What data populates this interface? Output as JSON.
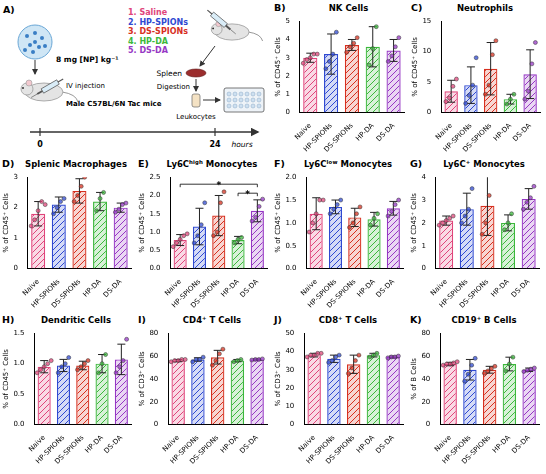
{
  "chart_data": [
    {
      "type": "bar",
      "panel": "B)",
      "title": "NK Cells",
      "y_label": "% of CD45⁺ Cells",
      "categories": [
        "Naive",
        "HP-SPIONs",
        "DS-SPIONs",
        "HP-DA",
        "DS-DA"
      ],
      "colors": [
        "#e0457b",
        "#2f49d1",
        "#d7301f",
        "#3cb83c",
        "#9637c4"
      ],
      "values": [
        3.0,
        3.2,
        3.7,
        3.6,
        3.4
      ],
      "errors": [
        0.25,
        1.1,
        0.3,
        1.1,
        0.6
      ],
      "points": [
        [
          2.7,
          2.9,
          3.0,
          3.2,
          3.2
        ],
        [
          2.4,
          2.8,
          3.2,
          4.4
        ],
        [
          3.3,
          3.6,
          3.8,
          4.1
        ],
        [
          2.6,
          3.5,
          4.7
        ],
        [
          2.8,
          3.1,
          3.6,
          4.1
        ]
      ],
      "ylim": [
        0,
        5
      ],
      "yticks": [
        0,
        1,
        2,
        3,
        4,
        5
      ],
      "grid": false
    },
    {
      "type": "bar",
      "panel": "C)",
      "title": "Neutrophils",
      "y_label": "% of CD45⁺ Cells",
      "categories": [
        "Naive",
        "HP-SPIONs",
        "DS-SPIONs",
        "HP-DA",
        "DS-DA"
      ],
      "colors": [
        "#e0457b",
        "#2f49d1",
        "#d7301f",
        "#3cb83c",
        "#9637c4"
      ],
      "values": [
        3.5,
        4.5,
        7.2,
        2.2,
        6.3
      ],
      "errors": [
        1.8,
        3.0,
        4.3,
        0.8,
        4.0
      ],
      "points": [
        [
          1.8,
          2.4,
          4.3,
          5.5
        ],
        [
          1.5,
          2.8,
          4.5,
          9.0
        ],
        [
          3.0,
          4.5,
          9.5,
          11.8
        ],
        [
          1.4,
          2.2,
          3.0
        ],
        [
          2.2,
          3.5,
          8.0,
          11.5
        ]
      ],
      "ylim": [
        0,
        15
      ],
      "yticks": [
        0,
        5,
        10,
        15
      ],
      "grid": false
    },
    {
      "type": "bar",
      "panel": "D)",
      "title": "Splenic Macrophages",
      "y_label": "% of CD45⁺ Cells",
      "categories": [
        "Naive",
        "HP-SPIONs",
        "DS-SPIONs",
        "HP-DA",
        "DS-DA"
      ],
      "colors": [
        "#e0457b",
        "#2f49d1",
        "#d7301f",
        "#3cb83c",
        "#9637c4"
      ],
      "values": [
        1.8,
        2.1,
        2.55,
        2.2,
        2.0
      ],
      "errors": [
        0.4,
        0.25,
        0.4,
        0.3,
        0.15
      ],
      "points": [
        [
          1.4,
          1.6,
          1.9,
          2.2,
          2.1
        ],
        [
          1.8,
          2.0,
          2.2,
          2.3
        ],
        [
          2.2,
          2.4,
          2.7,
          3.0
        ],
        [
          1.9,
          2.3,
          2.5
        ],
        [
          1.85,
          1.95,
          2.1,
          2.15
        ]
      ],
      "ylim": [
        0,
        3
      ],
      "yticks": [
        0,
        1,
        2,
        3
      ],
      "grid": false
    },
    {
      "type": "bar",
      "panel": "E)",
      "title": "Ly6Cʰⁱᵍʰ Monocytes",
      "y_label": "% of CD45⁺ Cells",
      "categories": [
        "Naive",
        "HP-SPIONs",
        "DS-SPIONs",
        "HP-DA",
        "DS-DA"
      ],
      "colors": [
        "#e0457b",
        "#2f49d1",
        "#d7301f",
        "#3cb83c",
        "#9637c4"
      ],
      "values": [
        0.78,
        1.15,
        1.45,
        0.78,
        1.58
      ],
      "errors": [
        0.15,
        0.5,
        0.55,
        0.1,
        0.3
      ],
      "points": [
        [
          0.6,
          0.7,
          0.8,
          0.9,
          0.95
        ],
        [
          0.7,
          0.9,
          1.2,
          1.8
        ],
        [
          0.9,
          1.0,
          1.8,
          2.1
        ],
        [
          0.7,
          0.8,
          0.85
        ],
        [
          1.3,
          1.4,
          1.7,
          1.9
        ]
      ],
      "ylim": [
        0,
        2.5
      ],
      "yticks": [
        {
          "value": 0,
          "label": "0.0"
        },
        0.5,
        {
          "value": 1,
          "label": "1.0"
        },
        1.5,
        {
          "value": 2,
          "label": "2.0"
        },
        2.5
      ],
      "grid": false,
      "annotations": [
        {
          "from": "Naive",
          "to": "DS-DA",
          "label": "*"
        },
        {
          "from": "HP-DA",
          "to": "DS-DA",
          "label": "*"
        }
      ]
    },
    {
      "type": "bar",
      "panel": "F)",
      "title": "Ly6Cˡᵒʷ Monocytes",
      "y_label": "% of CD45⁺ Cells",
      "categories": [
        "Naive",
        "HP-SPIONs",
        "DS-SPIONs",
        "HP-DA",
        "DS-DA"
      ],
      "colors": [
        "#e0457b",
        "#2f49d1",
        "#d7301f",
        "#3cb83c",
        "#9637c4"
      ],
      "values": [
        1.2,
        1.35,
        1.12,
        1.08,
        1.32
      ],
      "errors": [
        0.35,
        0.15,
        0.2,
        0.15,
        0.15
      ],
      "points": [
        [
          0.8,
          1.0,
          1.2,
          1.5,
          1.5
        ],
        [
          1.2,
          1.3,
          1.4,
          1.5
        ],
        [
          0.9,
          1.0,
          1.2,
          1.35
        ],
        [
          0.95,
          1.1,
          1.2
        ],
        [
          1.15,
          1.25,
          1.4,
          1.5
        ]
      ],
      "ylim": [
        0,
        2
      ],
      "yticks": [
        {
          "value": 0,
          "label": "0.0"
        },
        0.5,
        {
          "value": 1,
          "label": "1.0"
        },
        1.5,
        {
          "value": 2,
          "label": "2.0"
        }
      ],
      "grid": false
    },
    {
      "type": "bar",
      "panel": "G)",
      "title": "Ly6C⁺ Monocytes",
      "y_label": "% of CD45⁺ Cells",
      "categories": [
        "Naive",
        "HP-SPIONs",
        "DS-SPIONs",
        "HP-DA",
        "DS-DA"
      ],
      "colors": [
        "#e0457b",
        "#2f49d1",
        "#d7301f",
        "#3cb83c",
        "#9637c4"
      ],
      "values": [
        2.1,
        2.6,
        2.75,
        2.0,
        3.05
      ],
      "errors": [
        0.2,
        0.7,
        1.3,
        0.35,
        0.45
      ],
      "points": [
        [
          1.9,
          2.0,
          2.1,
          2.2,
          2.3
        ],
        [
          2.0,
          2.3,
          2.6,
          3.5
        ],
        [
          1.5,
          2.0,
          3.2,
          4.3
        ],
        [
          1.7,
          2.0,
          2.4
        ],
        [
          2.6,
          2.9,
          3.1,
          3.6
        ]
      ],
      "ylim": [
        0,
        4
      ],
      "yticks": [
        0,
        1,
        2,
        3,
        4
      ],
      "grid": false
    },
    {
      "type": "bar",
      "panel": "H)",
      "title": "Dendritic Cells",
      "y_label": "% of CD45⁺ Cells",
      "categories": [
        "Naive",
        "HP-SPIONs",
        "DS-SPIONs",
        "HP-DA",
        "DS-DA"
      ],
      "colors": [
        "#e0457b",
        "#2f49d1",
        "#d7301f",
        "#3cb83c",
        "#9637c4"
      ],
      "values": [
        0.95,
        0.97,
        0.97,
        1.0,
        1.07
      ],
      "errors": [
        0.1,
        0.1,
        0.07,
        0.15,
        0.25
      ],
      "points": [
        [
          0.85,
          0.9,
          0.95,
          1.0,
          1.05
        ],
        [
          0.85,
          0.95,
          1.0,
          1.1
        ],
        [
          0.9,
          0.95,
          1.0,
          1.05
        ],
        [
          0.85,
          1.0,
          1.15
        ],
        [
          0.85,
          0.95,
          1.05,
          1.4
        ]
      ],
      "ylim": [
        0,
        1.5
      ],
      "yticks": [
        {
          "value": 0,
          "label": "0.0"
        },
        0.5,
        {
          "value": 1,
          "label": "1.0"
        },
        1.5
      ],
      "grid": false
    },
    {
      "type": "bar",
      "panel": "I)",
      "title": "CD4⁺ T Cells",
      "y_label": "% of CD3⁺ Cells",
      "categories": [
        "Naive",
        "HP-SPIONs",
        "DS-SPIONs",
        "HP-DA",
        "DS-DA"
      ],
      "colors": [
        "#e0457b",
        "#2f49d1",
        "#d7301f",
        "#3cb83c",
        "#9637c4"
      ],
      "values": [
        56,
        57,
        59,
        56,
        57
      ],
      "errors": [
        1,
        1.5,
        6,
        1,
        0.5
      ],
      "points": [
        [
          55,
          56,
          56,
          57,
          57
        ],
        [
          55,
          57,
          57,
          59
        ],
        [
          52,
          56,
          62,
          66
        ],
        [
          55,
          56,
          57
        ],
        [
          56.5,
          57,
          57,
          57.5
        ]
      ],
      "ylim": [
        0,
        80
      ],
      "yticks": [
        0,
        20,
        40,
        60,
        80
      ],
      "grid": false
    },
    {
      "type": "bar",
      "panel": "J)",
      "title": "CD8⁺ T Cells",
      "y_label": "% of CD3⁺ Cells",
      "categories": [
        "Naive",
        "HP-SPIONs",
        "DS-SPIONs",
        "HP-DA",
        "DS-DA"
      ],
      "colors": [
        "#e0457b",
        "#2f49d1",
        "#d7301f",
        "#3cb83c",
        "#9637c4"
      ],
      "values": [
        38,
        36,
        33,
        38,
        37
      ],
      "errors": [
        1,
        2,
        5,
        1,
        0.5
      ],
      "points": [
        [
          37,
          38,
          38,
          39,
          39
        ],
        [
          34,
          35,
          37,
          38
        ],
        [
          28,
          31,
          35,
          38
        ],
        [
          37,
          38,
          39
        ],
        [
          36.5,
          37,
          37,
          37.5
        ]
      ],
      "ylim": [
        0,
        50
      ],
      "yticks": [
        0,
        10,
        20,
        30,
        40,
        50
      ],
      "grid": false
    },
    {
      "type": "bar",
      "panel": "K)",
      "title": "CD19⁺ B Cells",
      "y_label": "% of B Cells",
      "categories": [
        "Naive",
        "HP-SPIONs",
        "DS-SPIONs",
        "HP-DA",
        "DS-DA"
      ],
      "colors": [
        "#e0457b",
        "#2f49d1",
        "#d7301f",
        "#3cb83c",
        "#9637c4"
      ],
      "values": [
        53,
        48,
        48,
        53,
        48
      ],
      "errors": [
        1.5,
        9,
        3,
        6,
        1.5
      ],
      "points": [
        [
          52,
          53,
          53,
          54,
          55
        ],
        [
          38,
          44,
          52,
          58
        ],
        [
          45,
          47,
          49,
          51
        ],
        [
          47,
          53,
          59
        ],
        [
          46.5,
          47.5,
          48.5,
          49.5
        ]
      ],
      "ylim": [
        0,
        80
      ],
      "yticks": [
        0,
        20,
        40,
        60,
        80
      ],
      "grid": false
    }
  ],
  "diagram": {
    "panel": "A)",
    "dose": "8 mg [NP] kg⁻¹",
    "groups": [
      {
        "number": "1.",
        "name": "Saline",
        "color": "#e0457b"
      },
      {
        "number": "2.",
        "name": "HP-SPIONs",
        "color": "#2f49d1"
      },
      {
        "number": "3.",
        "name": "DS-SPIONs",
        "color": "#d7301f"
      },
      {
        "number": "4.",
        "name": "HP-DA",
        "color": "#3cb83c"
      },
      {
        "number": "5.",
        "name": "DS-DA",
        "color": "#9637c4"
      }
    ],
    "injection": "IV injection",
    "mice": "Male C57BL/6N Tac mice",
    "steps": [
      "Spleen",
      "Digestion",
      "Leukocytes"
    ],
    "timeline": {
      "start": "0",
      "end": "24",
      "unit": "hours"
    }
  }
}
